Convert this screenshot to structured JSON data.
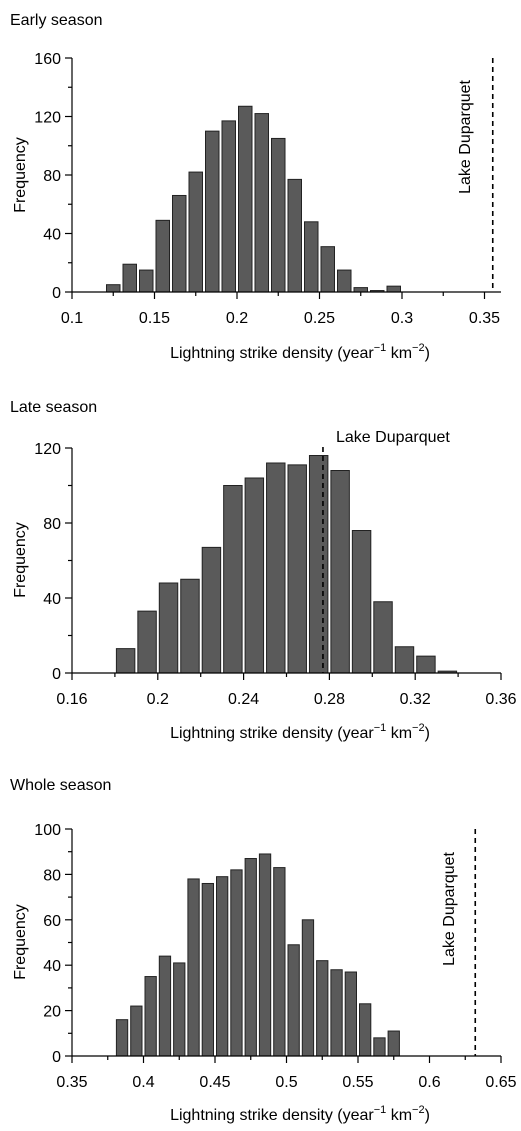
{
  "chart_data": [
    {
      "type": "bar",
      "title": "Early season",
      "xlabel": "Lightning strike density (year",
      "xlabel_exp1": "−1",
      "xlabel_mid": " km",
      "xlabel_exp2": "−2",
      "xlabel_end": ")",
      "ylabel": "Frequency",
      "xlim": [
        0.1,
        0.36
      ],
      "ylim": [
        0,
        160
      ],
      "xticks": [
        "0.1",
        "0.15",
        "0.2",
        "0.25",
        "0.3",
        "0.35"
      ],
      "xtick_values": [
        0.1,
        0.15,
        0.2,
        0.25,
        0.3,
        0.35
      ],
      "yticks": [
        "0",
        "40",
        "80",
        "120",
        "160"
      ],
      "ytick_values": [
        0,
        40,
        80,
        120,
        160
      ],
      "bin_width": 0.01,
      "x": [
        0.125,
        0.135,
        0.145,
        0.155,
        0.165,
        0.175,
        0.185,
        0.195,
        0.205,
        0.215,
        0.225,
        0.235,
        0.245,
        0.255,
        0.265,
        0.275,
        0.285,
        0.295,
        0.305,
        0.315,
        0.325
      ],
      "values": [
        5,
        19,
        15,
        49,
        66,
        82,
        110,
        117,
        127,
        122,
        105,
        77,
        48,
        31,
        15,
        3,
        1,
        4,
        0,
        0,
        0
      ],
      "reference": {
        "label": "Lake Duparquet",
        "x": 0.355,
        "orientation": "vertical"
      }
    },
    {
      "type": "bar",
      "title": "Late season",
      "xlabel": "Lightning strike density (year",
      "xlabel_exp1": "−1",
      "xlabel_mid": " km",
      "xlabel_exp2": "−2",
      "xlabel_end": ")",
      "ylabel": "Frequency",
      "xlim": [
        0.16,
        0.36
      ],
      "ylim": [
        0,
        120
      ],
      "xticks": [
        "0.16",
        "0.2",
        "0.24",
        "0.28",
        "0.32",
        "0.36"
      ],
      "xtick_values": [
        0.16,
        0.2,
        0.24,
        0.28,
        0.32,
        0.36
      ],
      "yticks": [
        "0",
        "40",
        "80",
        "120"
      ],
      "ytick_values": [
        0,
        40,
        80,
        120
      ],
      "bin_width": 0.01,
      "x": [
        0.185,
        0.195,
        0.205,
        0.215,
        0.225,
        0.235,
        0.245,
        0.255,
        0.265,
        0.275,
        0.285,
        0.295,
        0.305,
        0.315,
        0.325,
        0.335,
        0.345
      ],
      "values": [
        13,
        33,
        48,
        50,
        67,
        100,
        104,
        112,
        111,
        116,
        108,
        76,
        38,
        14,
        9,
        1,
        0
      ],
      "reference": {
        "label": "Lake Duparquet",
        "x": 0.277,
        "orientation": "horizontal"
      }
    },
    {
      "type": "bar",
      "title": "Whole season",
      "xlabel": "Lightning strike density (year",
      "xlabel_exp1": "−1",
      "xlabel_mid": " km",
      "xlabel_exp2": "−2",
      "xlabel_end": ")",
      "ylabel": "Frequency",
      "xlim": [
        0.35,
        0.65
      ],
      "ylim": [
        0,
        100
      ],
      "xticks": [
        "0.35",
        "0.4",
        "0.45",
        "0.5",
        "0.55",
        "0.6",
        "0.65"
      ],
      "xtick_values": [
        0.35,
        0.4,
        0.45,
        0.5,
        0.55,
        0.6,
        0.65
      ],
      "yticks": [
        "0",
        "20",
        "40",
        "60",
        "80",
        "100"
      ],
      "ytick_values": [
        0,
        20,
        40,
        60,
        80,
        100
      ],
      "bin_width": 0.01,
      "x": [
        0.385,
        0.395,
        0.405,
        0.415,
        0.425,
        0.435,
        0.445,
        0.455,
        0.465,
        0.475,
        0.485,
        0.495,
        0.505,
        0.515,
        0.525,
        0.535,
        0.545,
        0.555,
        0.565,
        0.575,
        0.585,
        0.595
      ],
      "values": [
        16,
        22,
        35,
        44,
        41,
        78,
        76,
        79,
        82,
        87,
        89,
        83,
        49,
        60,
        42,
        38,
        37,
        23,
        8,
        11,
        0,
        0
      ],
      "reference": {
        "label": "Lake Duparquet",
        "x": 0.632,
        "orientation": "vertical"
      }
    }
  ]
}
